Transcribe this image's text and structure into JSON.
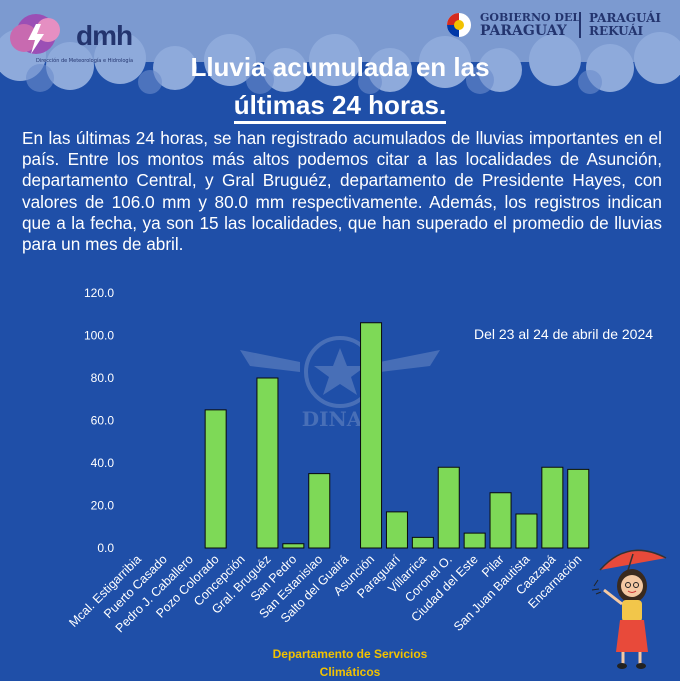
{
  "header": {
    "brand": "dmh",
    "tagline": "Dirección de Meteorología e Hidrología",
    "gov_line1": "GOBIERNO DEL",
    "gov_line2": "PARAGUAY",
    "gov_right1": "PARAGUÁI",
    "gov_right2": "REKUÁI"
  },
  "title": {
    "line1": "Lluvia acumulada en las",
    "line2": "últimas 24 horas."
  },
  "intro": "En las últimas 24 horas, se han registrado acumulados de lluvias importantes en el país. Entre los montos más altos podemos citar a las localidades de Asunción, departamento Central, y Gral Bruguéz, departamento de Presidente Hayes, con valores de 106.0 mm y 80.0 mm respectivamente. Además, los registros indican que a la fecha, ya son 15 las localidades, que han superado el promedio de lluvias para un mes de abril.",
  "period_note": "Del 23 al 24 de abril de 2024",
  "footer": "Departamento de Servicios Climáticos",
  "watermark": "DINAC",
  "colors": {
    "background": "#1f4fa8",
    "bar": "#7ed957",
    "text": "#ffffff",
    "footer": "#f2c200"
  },
  "chart_data": {
    "type": "bar",
    "ylim": [
      0,
      120
    ],
    "yticks": [
      "0.0",
      "20.0",
      "40.0",
      "60.0",
      "80.0",
      "100.0",
      "120.0"
    ],
    "grid": false,
    "categories": [
      "Mcal. Estigarribia",
      "Puerto Casado",
      "Pedro J. Caballero",
      "Pozo Colorado",
      "Concepción",
      "Gral. Bruguéz",
      "San Pedro",
      "San Estanislao",
      "Salto del Guairá",
      "Asunción",
      "Paraguarí",
      "Villarrica",
      "Coronel O.",
      "Ciudad del Este",
      "Pilar",
      "San Juan Bautista",
      "Caazapá",
      "Encarnación"
    ],
    "values": [
      0,
      0,
      0,
      65,
      0,
      80,
      2,
      35,
      0,
      106,
      17,
      5,
      38,
      7,
      26,
      16,
      38,
      37
    ]
  }
}
